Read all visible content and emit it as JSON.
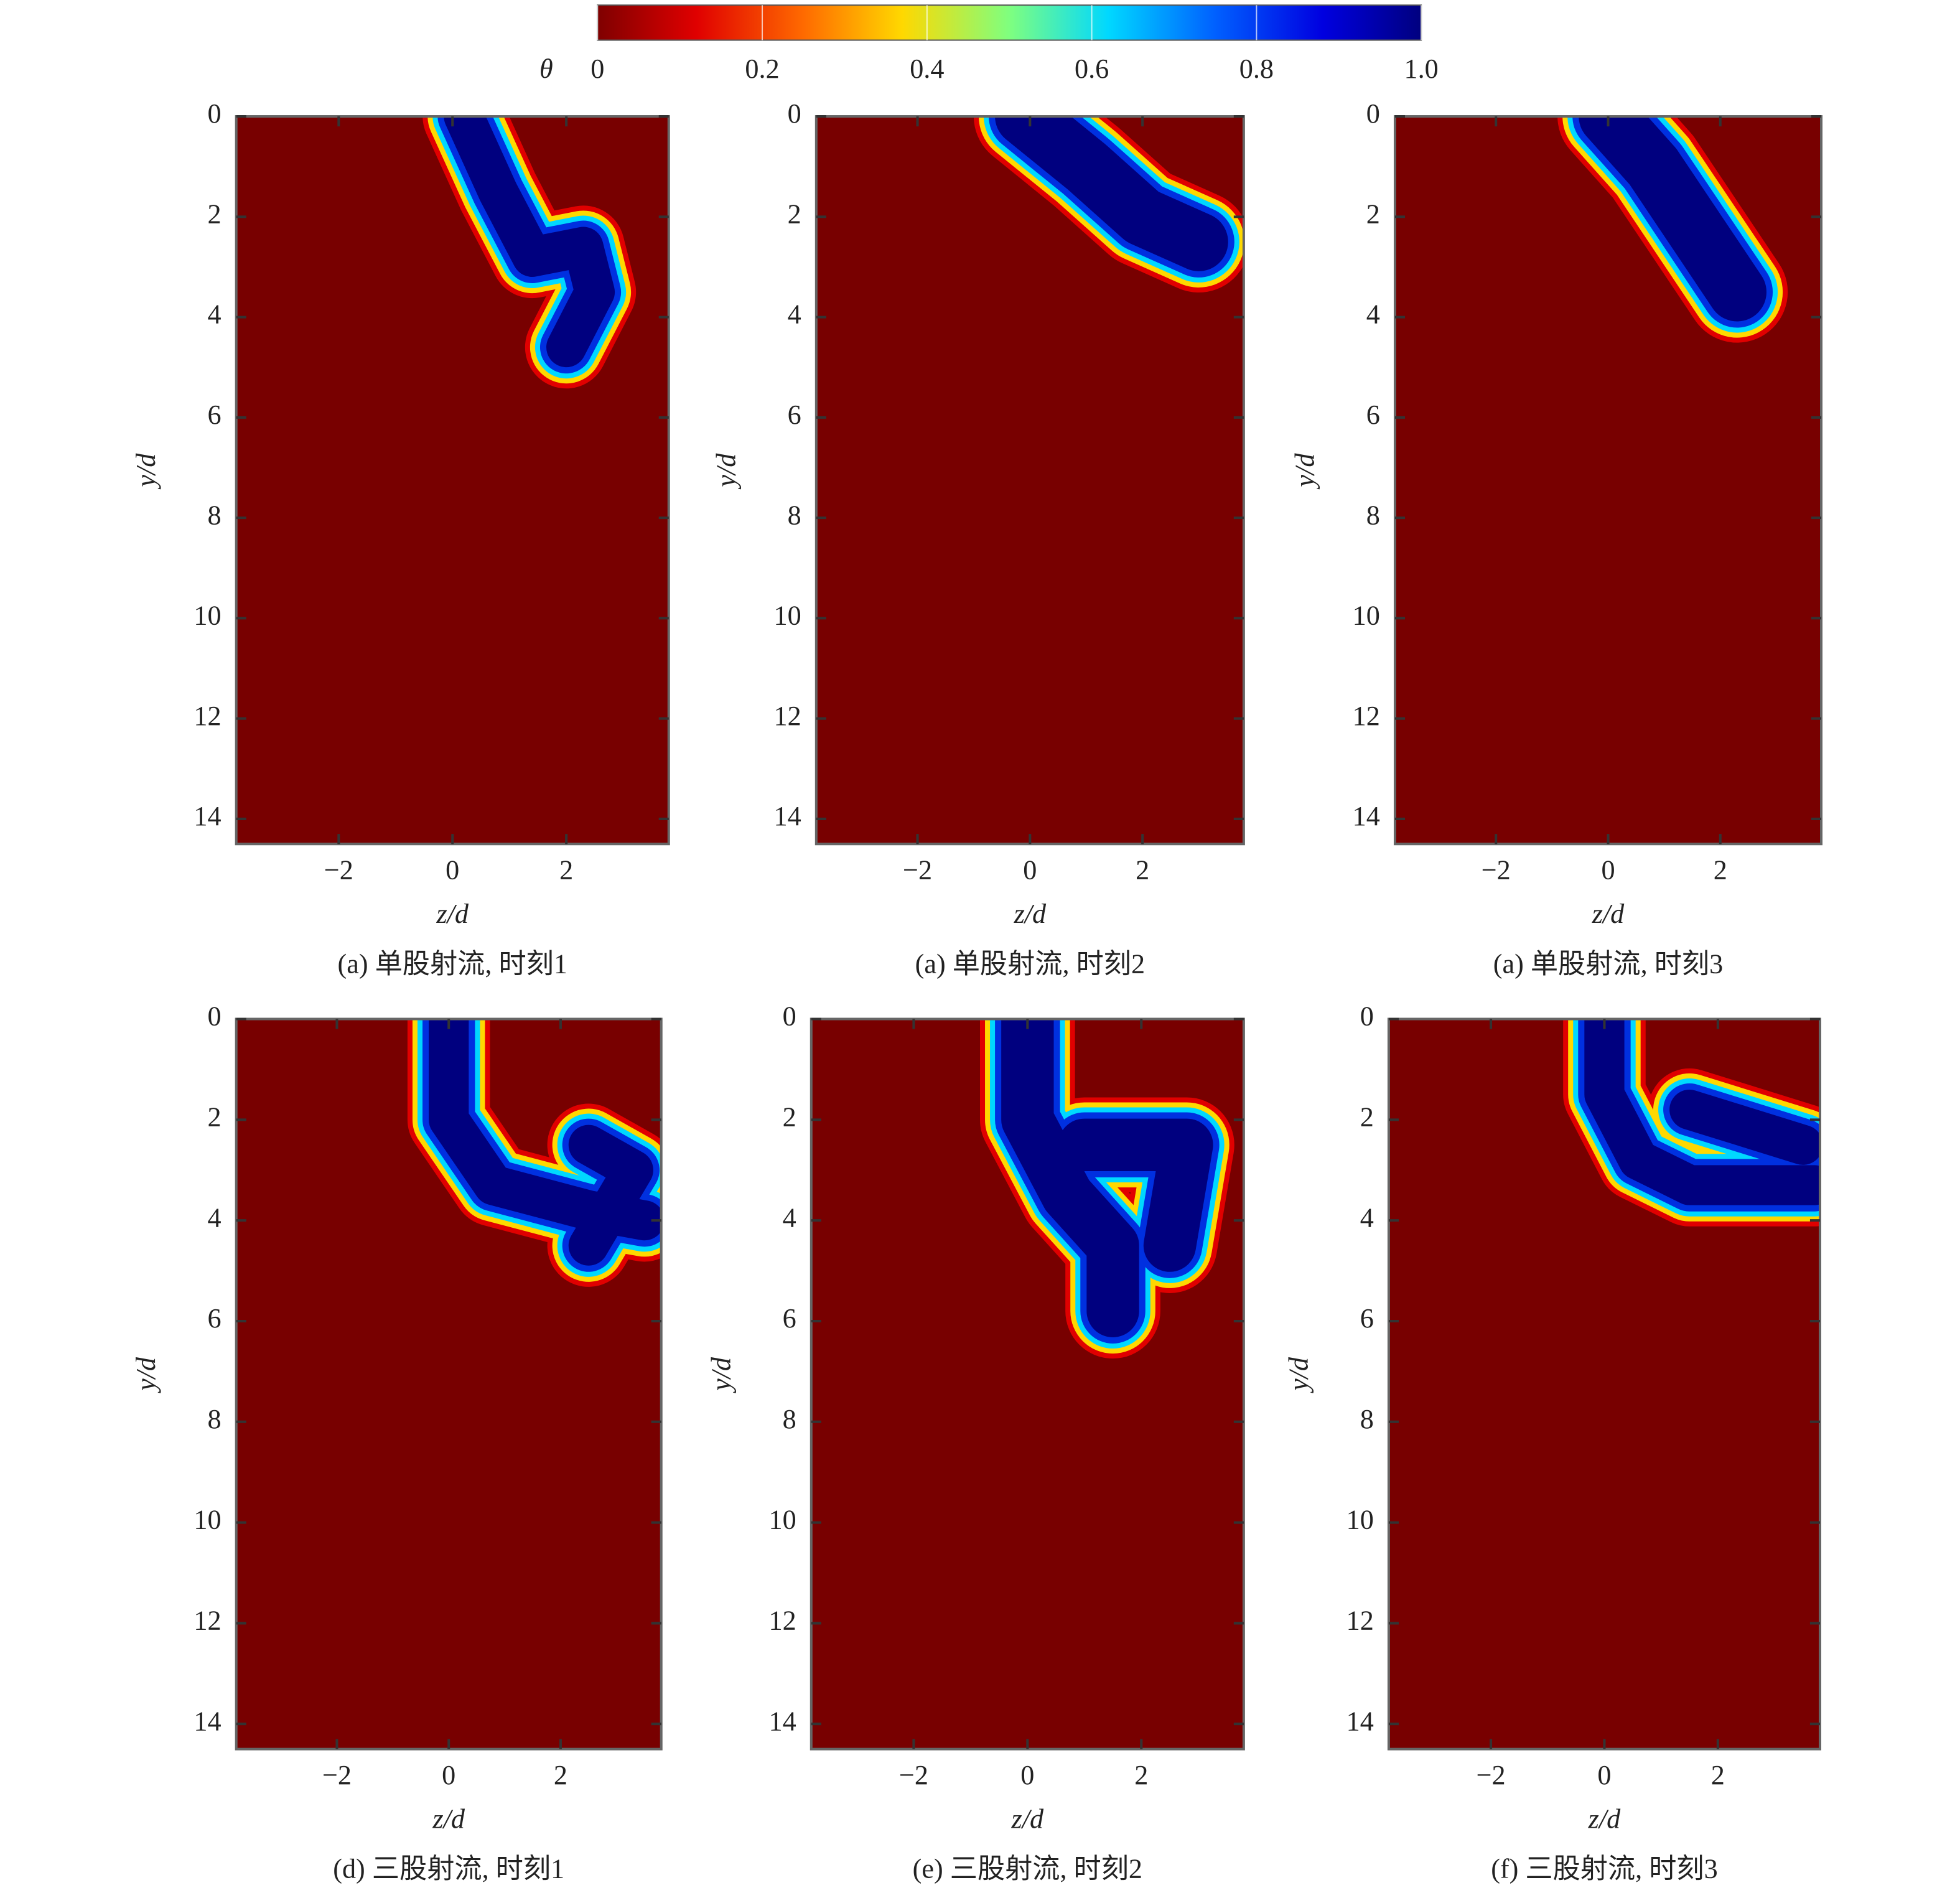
{
  "colorbar": {
    "label": "θ",
    "colormap": "jet_r",
    "lim": [
      0,
      1
    ],
    "ticks": [
      0,
      0.2,
      0.4,
      0.6,
      0.8,
      {
        "value": 1,
        "label": "1.0"
      }
    ]
  },
  "chart_data": [
    {
      "type": "heatmap",
      "caption": "(a) 单股射流, 时刻1",
      "xlabel": "z/d",
      "ylabel": "y/d",
      "background_color": "#780000",
      "xlim": [
        -3.8,
        3.8
      ],
      "ylim": [
        0,
        14.5
      ],
      "y_inverted": true,
      "xticks": [
        {
          "value": -2,
          "label": "−2"
        },
        0,
        2
      ],
      "yticks": [
        0,
        2,
        4,
        6,
        8,
        10,
        12,
        14
      ]
    },
    {
      "type": "heatmap",
      "caption": "(a) 单股射流, 时刻2",
      "xlabel": "z/d",
      "ylabel": "y/d",
      "background_color": "#780000",
      "xlim": [
        -3.8,
        3.8
      ],
      "ylim": [
        0,
        14.5
      ],
      "y_inverted": true,
      "xticks": [
        {
          "value": -2,
          "label": "−2"
        },
        0,
        2
      ],
      "yticks": [
        0,
        2,
        4,
        6,
        8,
        10,
        12,
        14
      ]
    },
    {
      "type": "heatmap",
      "caption": "(a) 单股射流, 时刻3",
      "xlabel": "z/d",
      "ylabel": "y/d",
      "background_color": "#780000",
      "xlim": [
        -3.8,
        3.8
      ],
      "ylim": [
        0,
        14.5
      ],
      "y_inverted": true,
      "xticks": [
        {
          "value": -2,
          "label": "−2"
        },
        0,
        2
      ],
      "yticks": [
        0,
        2,
        4,
        6,
        8,
        10,
        12,
        14
      ]
    },
    {
      "type": "heatmap",
      "caption": "(d) 三股射流, 时刻1",
      "xlabel": "z/d",
      "ylabel": "y/d",
      "background_color": "#780000",
      "xlim": [
        -3.8,
        3.8
      ],
      "ylim": [
        0,
        14.5
      ],
      "y_inverted": true,
      "xticks": [
        {
          "value": -2,
          "label": "−2"
        },
        0,
        2
      ],
      "yticks": [
        0,
        2,
        4,
        6,
        8,
        10,
        12,
        14
      ]
    },
    {
      "type": "heatmap",
      "caption": "(e) 三股射流, 时刻2",
      "xlabel": "z/d",
      "ylabel": "y/d",
      "background_color": "#780000",
      "xlim": [
        -3.8,
        3.8
      ],
      "ylim": [
        0,
        14.5
      ],
      "y_inverted": true,
      "xticks": [
        {
          "value": -2,
          "label": "−2"
        },
        0,
        2
      ],
      "yticks": [
        0,
        2,
        4,
        6,
        8,
        10,
        12,
        14
      ]
    },
    {
      "type": "heatmap",
      "caption": "(f) 三股射流, 时刻3",
      "xlabel": "z/d",
      "ylabel": "y/d",
      "background_color": "#780000",
      "xlim": [
        -3.8,
        3.8
      ],
      "ylim": [
        0,
        14.5
      ],
      "y_inverted": true,
      "xticks": [
        {
          "value": -2,
          "label": "−2"
        },
        0,
        2
      ],
      "yticks": [
        0,
        2,
        4,
        6,
        8,
        10,
        12,
        14
      ]
    }
  ]
}
